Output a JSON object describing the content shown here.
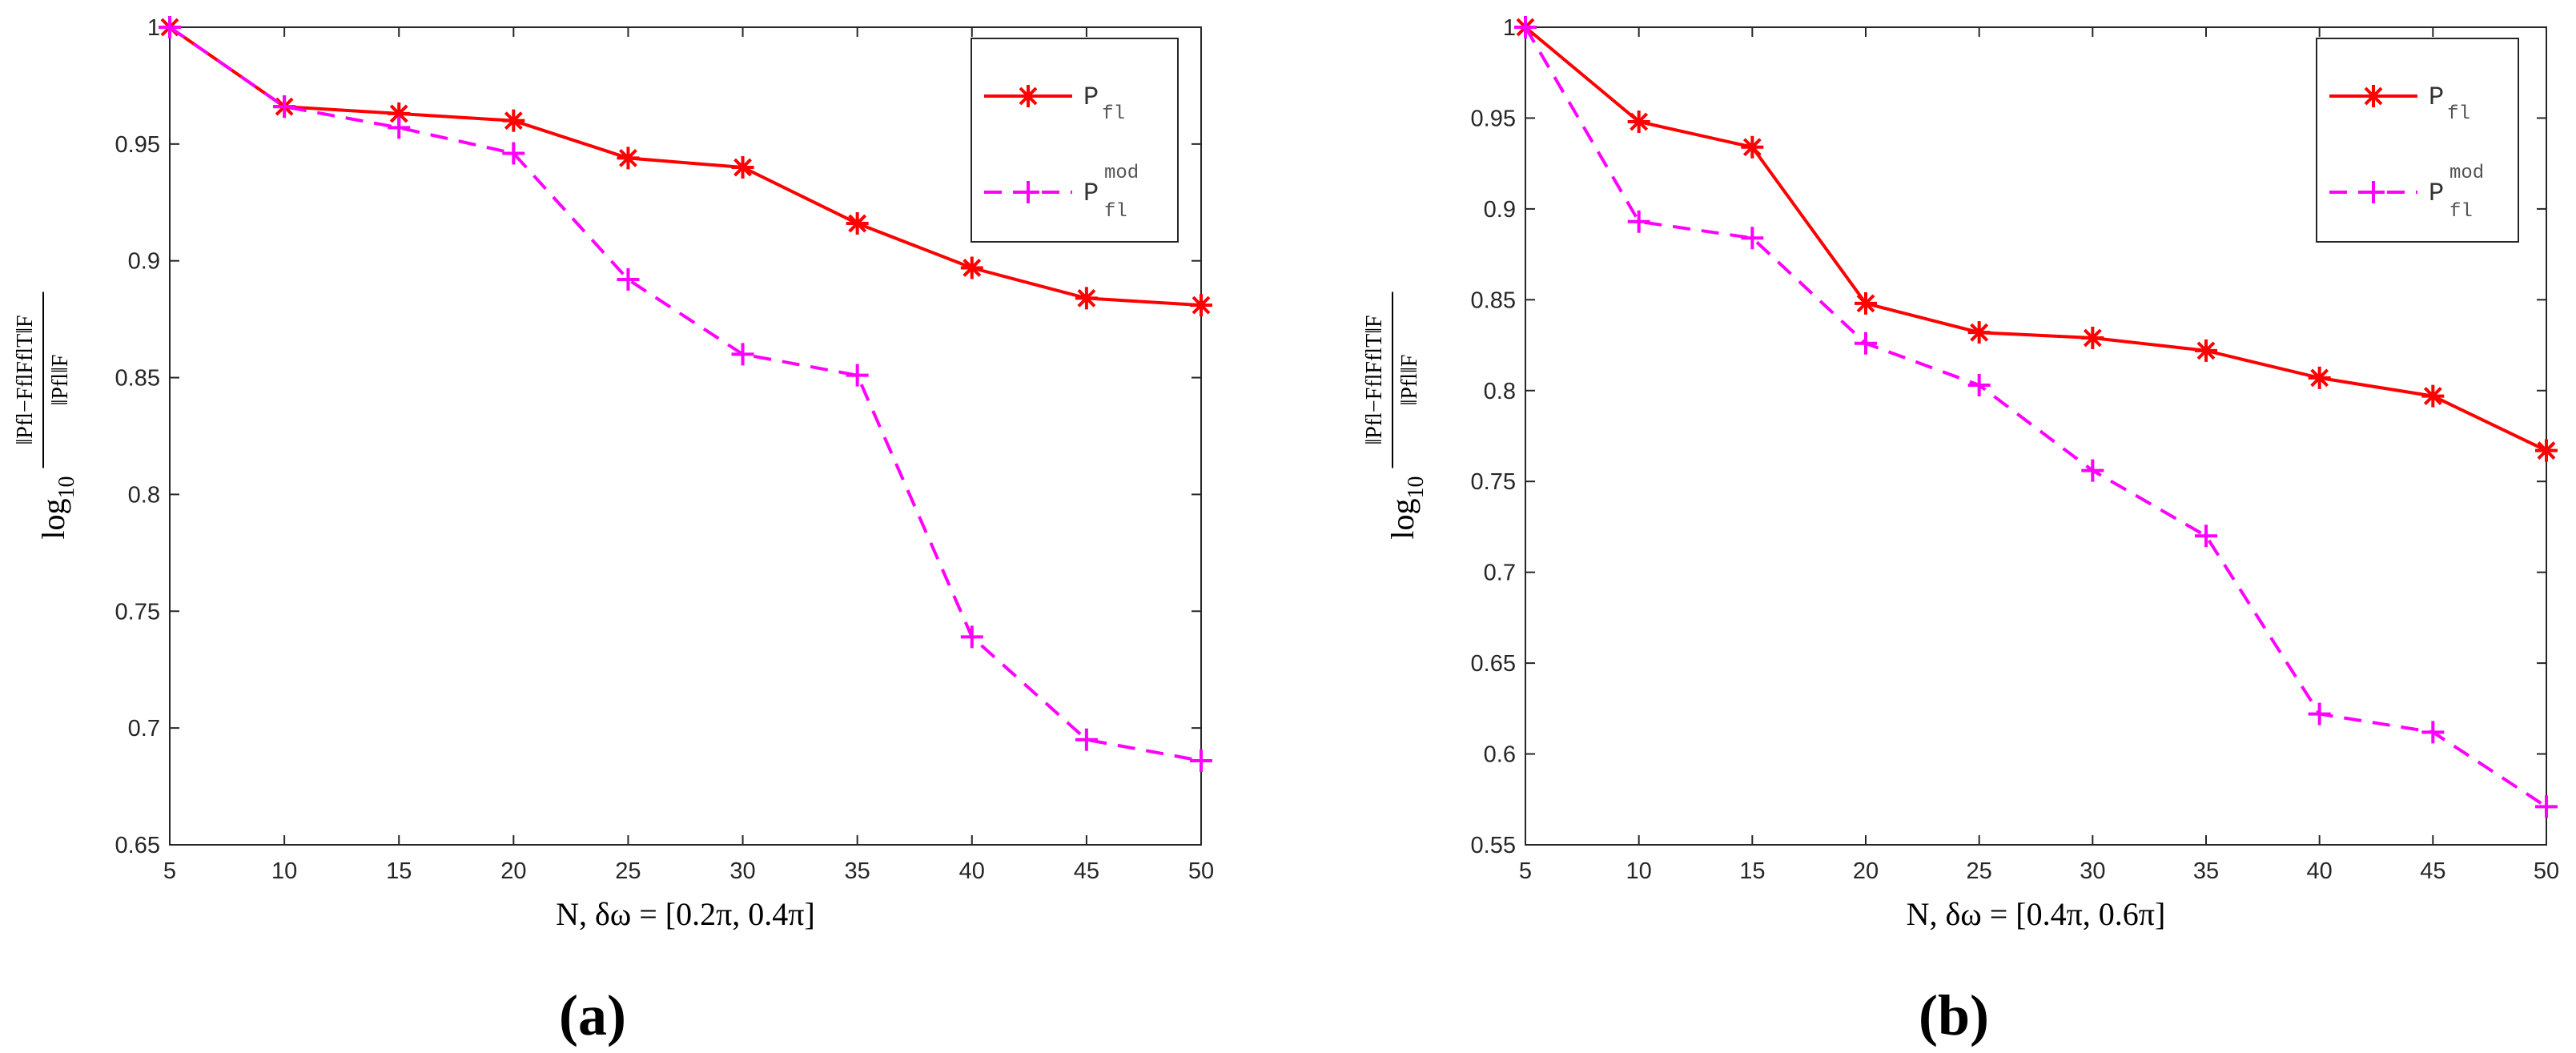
{
  "chart_data": [
    {
      "type": "line",
      "panel_label": "(a)",
      "categories": [
        5,
        10,
        15,
        20,
        25,
        30,
        35,
        40,
        45,
        50
      ],
      "xlabel": "N, δω = [0.2π, 0.4π]",
      "ylabel": "log10 ||Pfl − Ffl FflT||F / ||Pfl||F",
      "ylabel_parts": {
        "log": "log",
        "base": "10",
        "num": "‖Pfl−FflFflT‖F",
        "den": "‖Pfl‖F"
      },
      "xlim": [
        5,
        50
      ],
      "ylim": [
        0.65,
        1.0
      ],
      "yticks": [
        "0.65",
        "0.7",
        "0.75",
        "0.8",
        "0.85",
        "0.9",
        "0.95",
        "1"
      ],
      "xticks": [
        "5",
        "10",
        "15",
        "20",
        "25",
        "30",
        "35",
        "40",
        "45",
        "50"
      ],
      "legend_position": "top-right",
      "series": [
        {
          "name": "P",
          "sub": "fl",
          "sup": "",
          "color": "#ff0000",
          "style": "solid",
          "marker": "asterisk",
          "values": [
            1.0,
            0.966,
            0.963,
            0.96,
            0.944,
            0.94,
            0.916,
            0.897,
            0.884,
            0.881
          ]
        },
        {
          "name": "P",
          "sub": "fl",
          "sup": "mod",
          "color": "#ff00ff",
          "style": "dashed",
          "marker": "plus",
          "values": [
            1.0,
            0.966,
            0.957,
            0.946,
            0.892,
            0.86,
            0.851,
            0.739,
            0.695,
            0.686
          ]
        }
      ]
    },
    {
      "type": "line",
      "panel_label": "(b)",
      "categories": [
        5,
        10,
        15,
        20,
        25,
        30,
        35,
        40,
        45,
        50
      ],
      "xlabel": "N, δω = [0.4π, 0.6π]",
      "ylabel": "log10 ||Pfl − Ffl FflT||F / ||Pfl||F",
      "ylabel_parts": {
        "log": "log",
        "base": "10",
        "num": "‖Pfl−FflFflT‖F",
        "den": "‖Pfl‖F"
      },
      "xlim": [
        5,
        50
      ],
      "ylim": [
        0.55,
        1.0
      ],
      "yticks": [
        "0.55",
        "0.6",
        "0.65",
        "0.7",
        "0.75",
        "0.8",
        "0.85",
        "0.9",
        "0.95",
        "1"
      ],
      "xticks": [
        "5",
        "10",
        "15",
        "20",
        "25",
        "30",
        "35",
        "40",
        "45",
        "50"
      ],
      "legend_position": "top-right",
      "series": [
        {
          "name": "P",
          "sub": "fl",
          "sup": "",
          "color": "#ff0000",
          "style": "solid",
          "marker": "asterisk",
          "values": [
            1.0,
            0.948,
            0.934,
            0.848,
            0.832,
            0.829,
            0.822,
            0.807,
            0.797,
            0.767
          ]
        },
        {
          "name": "P",
          "sub": "fl",
          "sup": "mod",
          "color": "#ff00ff",
          "style": "dashed",
          "marker": "plus",
          "values": [
            1.0,
            0.893,
            0.884,
            0.826,
            0.803,
            0.756,
            0.72,
            0.622,
            0.612,
            0.571
          ]
        }
      ]
    }
  ]
}
